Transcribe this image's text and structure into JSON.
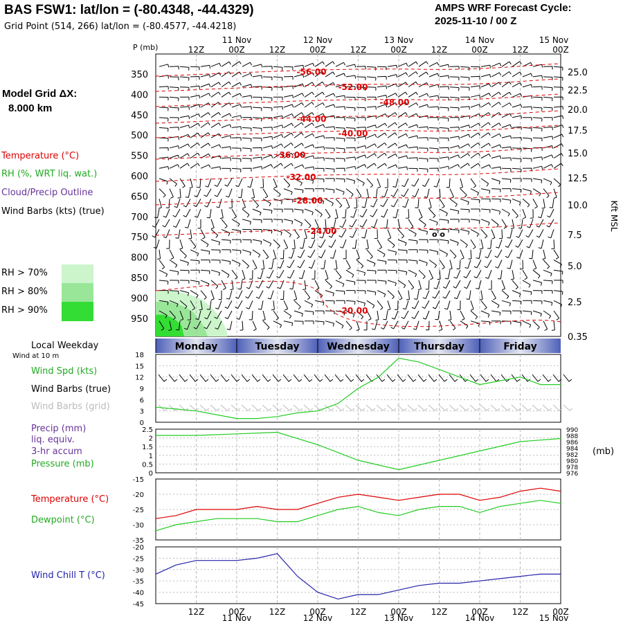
{
  "header": {
    "station": "BAS FSW1:",
    "latlon": "lat/lon = (-80.4348, -44.4329)",
    "grid_point": "Grid Point (514, 266) lat/lon = (-80.4577, -44.4218)",
    "cycle_title": "AMPS WRF Forecast Cycle:",
    "cycle_value": "2025-11-10 / 00  Z"
  },
  "sidebar": {
    "model_grid_label": "Model Grid ΔX:",
    "model_grid_value": "8.000 km",
    "legend_temperature": "Temperature (°C)",
    "legend_rh": "RH (%, WRT liq. wat.)",
    "legend_cloud": "Cloud/Precip Outline",
    "legend_wind": "Wind Barbs (kts) (true)",
    "rh_levels": [
      "RH > 70%",
      "RH > 80%",
      "RH > 90%"
    ],
    "local_weekday": "Local Weekday",
    "wind_at_10m": "Wind at 10 m",
    "wind_spd": "Wind Spd (kts)",
    "wind_barbs_true": "Wind Barbs (true)",
    "wind_barbs_grid": "Wind Barbs (grid)",
    "precip_1": "Precip (mm)",
    "precip_2": "liq. equiv.",
    "precip_3": "3-hr accum",
    "pressure": "Pressure (mb)",
    "temp_label": "Temperature (°C)",
    "dewpoint_label": "Dewpoint (°C)",
    "windchill_label": "Wind Chill T (°C)"
  },
  "colors": {
    "temperature": "#dd0000",
    "rh_green": "#22cc22",
    "cloud": "#663399",
    "windchill": "#2222aa",
    "rh70": "#ccf5cc",
    "rh80": "#99e699",
    "rh90": "#33dd33"
  },
  "chart_data": [
    {
      "type": "line",
      "name": "vertical-cross-section",
      "x_ticks": [
        "12Z",
        "00Z",
        "12Z",
        "00Z",
        "12Z",
        "00Z",
        "12Z",
        "00Z",
        "12Z",
        "00Z"
      ],
      "x_dates": [
        "11 Nov",
        "12 Nov",
        "13 Nov",
        "14 Nov",
        "15 Nov"
      ],
      "ylabel": "P (mb)",
      "y_ticks": [
        350,
        400,
        450,
        500,
        550,
        600,
        650,
        700,
        750,
        800,
        850,
        900,
        950
      ],
      "y_right_label": "Kft MSL",
      "y_right_ticks": [
        "25.0",
        "22.5",
        "20.0",
        "17.5",
        "15.0",
        "12.5",
        "10.0",
        "7.5",
        "5.0",
        "2.5",
        "0.35"
      ],
      "isotherm_labels": [
        "-56.00",
        "-52.00",
        "-48.00",
        "-44.00",
        "-40.00",
        "-36.00",
        "-32.00",
        "-28.00",
        "-24.00",
        "-20.00"
      ]
    },
    {
      "type": "table",
      "name": "local-weekday",
      "days": [
        "Monday",
        "Tuesday",
        "Wednesday",
        "Thursday",
        "Friday"
      ]
    },
    {
      "type": "line",
      "name": "wind-speed",
      "ylim": [
        0,
        18
      ],
      "y_ticks": [
        0,
        3,
        6,
        9,
        12,
        15,
        18
      ],
      "x_hours": [
        0,
        6,
        12,
        18,
        24,
        30,
        36,
        42,
        48,
        54,
        60,
        66,
        72,
        78,
        84,
        90,
        96,
        102,
        108,
        114,
        120
      ],
      "values": [
        4,
        3.5,
        3,
        2,
        1,
        1,
        1.5,
        2.5,
        3,
        5,
        9,
        12,
        17,
        16,
        14,
        12,
        10,
        11,
        12,
        10,
        10
      ]
    },
    {
      "type": "line",
      "name": "precip-pressure",
      "ylim_left": [
        0,
        2.5
      ],
      "y_ticks_left": [
        "0",
        "0.5",
        "1",
        "1.5",
        "2",
        "2.5"
      ],
      "ylim_right": [
        976,
        990
      ],
      "y_ticks_right": [
        976,
        978,
        980,
        982,
        984,
        986,
        988,
        990
      ],
      "right_unit": "(mb)",
      "x_hours": [
        0,
        12,
        24,
        36,
        48,
        60,
        72,
        84,
        96,
        108,
        120
      ],
      "pressure": [
        988,
        988,
        988.5,
        989,
        985,
        980,
        977,
        980,
        983,
        986,
        987
      ]
    },
    {
      "type": "line",
      "name": "temperature-dewpoint",
      "ylim": [
        -35,
        -15
      ],
      "y_ticks": [
        -35,
        -30,
        -25,
        -20,
        -15
      ],
      "x_hours": [
        0,
        6,
        12,
        18,
        24,
        30,
        36,
        42,
        48,
        54,
        60,
        66,
        72,
        78,
        84,
        90,
        96,
        102,
        108,
        114,
        120
      ],
      "temperature": [
        -28,
        -27,
        -25,
        -25,
        -25,
        -24,
        -25,
        -25,
        -23,
        -21,
        -20,
        -21,
        -22,
        -21,
        -20,
        -20,
        -22,
        -21,
        -19,
        -18,
        -19
      ],
      "dewpoint": [
        -32,
        -30,
        -29,
        -28,
        -28,
        -28,
        -29,
        -29,
        -27,
        -25,
        -24,
        -26,
        -27,
        -25,
        -24,
        -24,
        -26,
        -24,
        -23,
        -22,
        -23
      ]
    },
    {
      "type": "line",
      "name": "wind-chill",
      "ylim": [
        -45,
        -20
      ],
      "y_ticks": [
        -45,
        -40,
        -35,
        -30,
        -25,
        -20
      ],
      "x_hours": [
        0,
        6,
        12,
        18,
        24,
        30,
        36,
        42,
        48,
        54,
        60,
        66,
        72,
        78,
        84,
        90,
        96,
        102,
        108,
        114,
        120
      ],
      "values": [
        -32,
        -28,
        -26,
        -26,
        -26,
        -25,
        -23,
        -33,
        -40,
        -43,
        -41,
        -41,
        -39,
        -37,
        -36,
        -36,
        -35,
        -34,
        -33,
        -32,
        -32
      ]
    }
  ]
}
